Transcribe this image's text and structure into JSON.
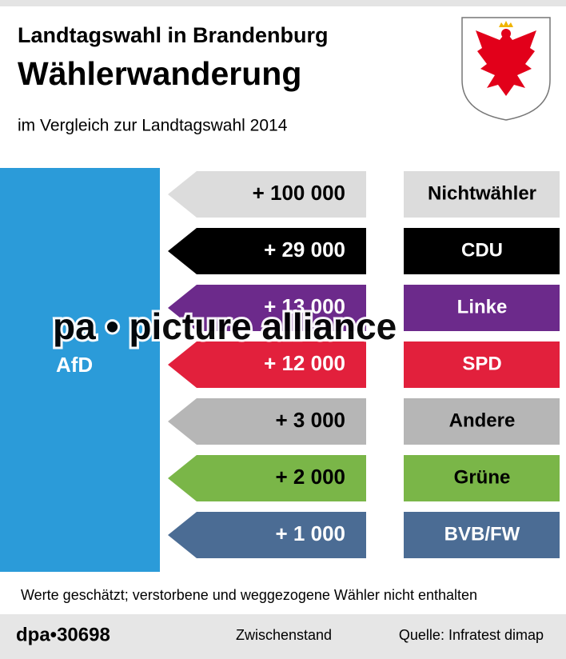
{
  "header": {
    "title": "Landtagswahl in Brandenburg",
    "heading": "Wählerwanderung",
    "subtitle": "im Vergleich zur Landtagswahl 2014"
  },
  "target": {
    "label": "AfD",
    "color": "#2b9bd9"
  },
  "rows": [
    {
      "value": "+ 100 000",
      "label": "Nichtwähler",
      "color": "#dcdcdc",
      "text_color": "#000000"
    },
    {
      "value": "+ 29 000",
      "label": "CDU",
      "color": "#000000",
      "text_color": "#ffffff"
    },
    {
      "value": "+ 13 000",
      "label": "Linke",
      "color": "#6c2a8b",
      "text_color": "#ffffff"
    },
    {
      "value": "+ 12 000",
      "label": "SPD",
      "color": "#e2203c",
      "text_color": "#ffffff"
    },
    {
      "value": "+ 3 000",
      "label": "Andere",
      "color": "#b6b6b6",
      "text_color": "#000000"
    },
    {
      "value": "+ 2 000",
      "label": "Grüne",
      "color": "#7ab648",
      "text_color": "#000000"
    },
    {
      "value": "+ 1 000",
      "label": "BVB/FW",
      "color": "#4b6c94",
      "text_color": "#ffffff"
    }
  ],
  "note": "Werte geschätzt; verstorbene und weggezogene Wähler nicht enthalten",
  "footer": {
    "id": "dpa•30698",
    "status": "Zwischenstand",
    "source": "Quelle: Infratest dimap"
  },
  "watermark": "pa • picture alliance"
}
